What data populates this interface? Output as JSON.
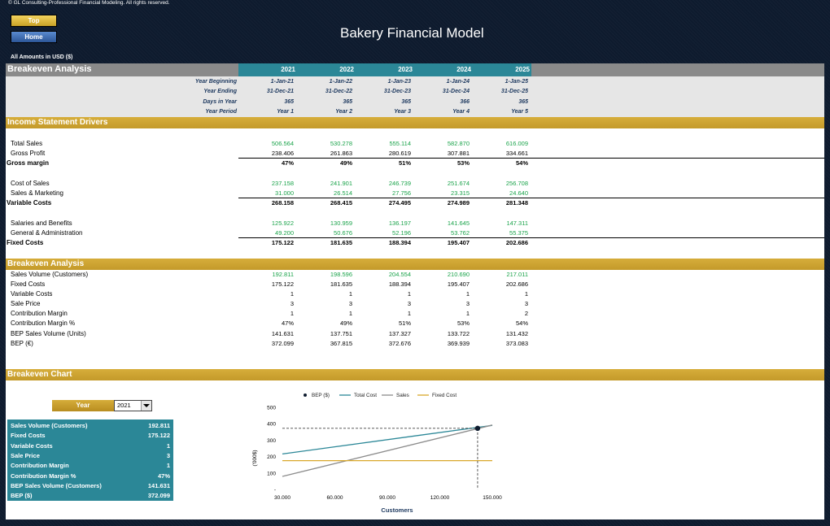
{
  "copyright": "© GL Consulting-Professional Financial Modeling. All rights reserved.",
  "nav": {
    "top_label": "Top",
    "home_label": "Home"
  },
  "title": "Bakery Financial Model",
  "amounts_note": "All Amounts in  USD ($)",
  "header": {
    "title": "Breakeven Analysis",
    "years": [
      "2021",
      "2022",
      "2023",
      "2024",
      "2025"
    ]
  },
  "timeline": [
    {
      "label": "Year Beginning",
      "values": [
        "1-Jan-21",
        "1-Jan-22",
        "1-Jan-23",
        "1-Jan-24",
        "1-Jan-25"
      ]
    },
    {
      "label": "Year Ending",
      "values": [
        "31-Dec-21",
        "31-Dec-22",
        "31-Dec-23",
        "31-Dec-24",
        "31-Dec-25"
      ]
    },
    {
      "label": "Days in Year",
      "values": [
        "365",
        "365",
        "365",
        "366",
        "365"
      ]
    },
    {
      "label": "Year Period",
      "values": [
        "Year 1",
        "Year 2",
        "Year 3",
        "Year 4",
        "Year 5"
      ]
    }
  ],
  "sections": {
    "income_drivers": "Income Statement Drivers",
    "breakeven": "Breakeven Analysis",
    "chart": "Breakeven Chart"
  },
  "income": [
    {
      "label": "Total Sales",
      "values": [
        "506.564",
        "530.278",
        "555.114",
        "582.870",
        "616.009"
      ],
      "style": "green"
    },
    {
      "label": "Gross Profit",
      "values": [
        "238.406",
        "261.863",
        "280.619",
        "307.881",
        "334.661"
      ],
      "style": "plain"
    },
    {
      "label": "Gross margin",
      "values": [
        "47%",
        "49%",
        "51%",
        "53%",
        "54%"
      ],
      "style": "total"
    },
    {
      "label": "Cost of Sales",
      "values": [
        "237.158",
        "241.901",
        "246.739",
        "251.674",
        "256.708"
      ],
      "style": "green"
    },
    {
      "label": "Sales & Marketing",
      "values": [
        "31.000",
        "26.514",
        "27.756",
        "23.315",
        "24.640"
      ],
      "style": "green"
    },
    {
      "label": "Variable Costs",
      "values": [
        "268.158",
        "268.415",
        "274.495",
        "274.989",
        "281.348"
      ],
      "style": "total"
    },
    {
      "label": "Salaries and Benefits",
      "values": [
        "125.922",
        "130.959",
        "136.197",
        "141.645",
        "147.311"
      ],
      "style": "green"
    },
    {
      "label": "General & Administration",
      "values": [
        "49.200",
        "50.676",
        "52.196",
        "53.762",
        "55.375"
      ],
      "style": "green"
    },
    {
      "label": "Fixed Costs",
      "values": [
        "175.122",
        "181.635",
        "188.394",
        "195.407",
        "202.686"
      ],
      "style": "total"
    }
  ],
  "breakeven": [
    {
      "label": "Sales Volume (Customers)",
      "values": [
        "192.811",
        "198.596",
        "204.554",
        "210.690",
        "217.011"
      ],
      "style": "green"
    },
    {
      "label": "Fixed Costs",
      "values": [
        "175.122",
        "181.635",
        "188.394",
        "195.407",
        "202.686"
      ],
      "style": "plain"
    },
    {
      "label": "Variable Costs",
      "values": [
        "1",
        "1",
        "1",
        "1",
        "1"
      ],
      "style": "plain"
    },
    {
      "label": "Sale Price",
      "values": [
        "3",
        "3",
        "3",
        "3",
        "3"
      ],
      "style": "plain"
    },
    {
      "label": "Contribution Margin",
      "values": [
        "1",
        "1",
        "1",
        "1",
        "2"
      ],
      "style": "plain"
    },
    {
      "label": "Contribution Margin %",
      "values": [
        "47%",
        "49%",
        "51%",
        "53%",
        "54%"
      ],
      "style": "plain"
    },
    {
      "label": "BEP Sales Volume (Units)",
      "values": [
        "141.631",
        "137.751",
        "137.327",
        "133.722",
        "131.432"
      ],
      "style": "plain"
    },
    {
      "label": "BEP (€)",
      "values": [
        "372.099",
        "367.815",
        "372.676",
        "369.939",
        "373.083"
      ],
      "style": "plain"
    }
  ],
  "year_selector": {
    "label": "Year",
    "value": "2021"
  },
  "summary": [
    {
      "label": "Sales Volume (Customers)",
      "value": "192.811"
    },
    {
      "label": "Fixed Costs",
      "value": "175.122"
    },
    {
      "label": "Variable Costs",
      "value": "1"
    },
    {
      "label": "Sale Price",
      "value": "3"
    },
    {
      "label": "Contribution Margin",
      "value": "1"
    },
    {
      "label": "Contribution Margin %",
      "value": "47%"
    },
    {
      "label": "BEP Sales Volume (Customers)",
      "value": "141.631"
    },
    {
      "label": "BEP ($)",
      "value": "372.099"
    }
  ],
  "colors": {
    "teal": "#2b8797",
    "gold": "#c9a227",
    "green": "#1aa34a",
    "navy": "#0e1b2e"
  },
  "chart_data": {
    "type": "line",
    "xlabel": "Customers",
    "ylabel": "('000$)",
    "xlim": [
      30,
      150
    ],
    "ylim": [
      0,
      500
    ],
    "xticks": [
      "30.000",
      "60.000",
      "90.000",
      "120.000",
      "150.000"
    ],
    "yticks": [
      "-",
      "100",
      "200",
      "300",
      "400",
      "500"
    ],
    "legend": [
      "BEP ($)",
      "Total Cost",
      "Sales",
      "Fixed Cost"
    ],
    "series": [
      {
        "name": "Total Cost",
        "x": [
          30,
          150
        ],
        "y": [
          216,
          390
        ],
        "color": "#2b8797"
      },
      {
        "name": "Sales",
        "x": [
          30,
          150
        ],
        "y": [
          79,
          392
        ],
        "color": "#8c8c8c"
      },
      {
        "name": "Fixed Cost",
        "x": [
          30,
          150
        ],
        "y": [
          175,
          175
        ],
        "color": "#d9a82a"
      }
    ],
    "bep": {
      "x": 141.6,
      "y": 372.1
    }
  }
}
